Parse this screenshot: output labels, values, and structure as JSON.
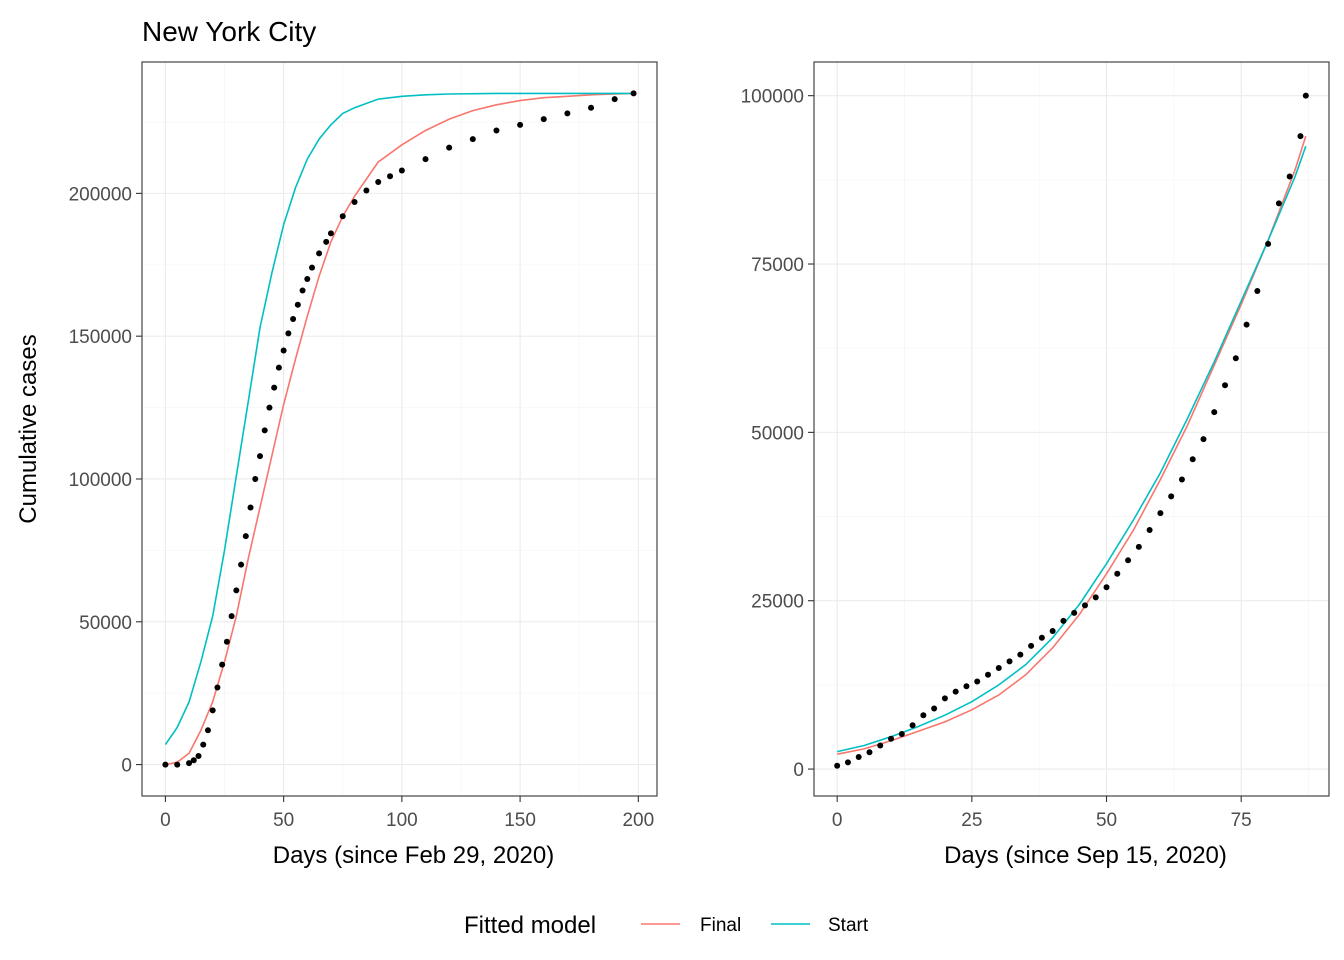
{
  "title": "New York City",
  "legend": {
    "title": "Fitted model",
    "placement": "bottom",
    "entries": [
      {
        "label": "Final",
        "color": "#F8766D"
      },
      {
        "label": "Start",
        "color": "#00BFC4"
      }
    ]
  },
  "chart_data": [
    {
      "type": "line",
      "xlabel": "Days (since Feb 29, 2020)",
      "ylabel": "Cumulative cases",
      "xlim": [
        -9.9,
        207.9
      ],
      "ylim": [
        -11000,
        246000
      ],
      "xticks": [
        0,
        50,
        100,
        150,
        200
      ],
      "yticks": [
        0,
        50000,
        100000,
        150000,
        200000
      ],
      "xtick_labels": [
        "0",
        "50",
        "100",
        "150",
        "200"
      ],
      "ytick_labels": [
        "0",
        "50000",
        "100000",
        "150000",
        "200000"
      ],
      "grid": true,
      "points": {
        "name": "observed",
        "x": [
          0,
          5,
          10,
          12,
          14,
          16,
          18,
          20,
          22,
          24,
          26,
          28,
          30,
          32,
          34,
          36,
          38,
          40,
          42,
          44,
          46,
          48,
          50,
          52,
          54,
          56,
          58,
          60,
          62,
          65,
          68,
          70,
          75,
          80,
          85,
          90,
          95,
          100,
          110,
          120,
          130,
          140,
          150,
          160,
          170,
          180,
          190,
          198
        ],
        "y": [
          0,
          0,
          500,
          1500,
          3000,
          7000,
          12000,
          19000,
          27000,
          35000,
          43000,
          52000,
          61000,
          70000,
          80000,
          90000,
          100000,
          108000,
          117000,
          125000,
          132000,
          139000,
          145000,
          151000,
          156000,
          161000,
          166000,
          170000,
          174000,
          179000,
          183000,
          186000,
          192000,
          197000,
          201000,
          204000,
          206000,
          208000,
          212000,
          216000,
          219000,
          222000,
          224000,
          226000,
          228000,
          230000,
          233000,
          235000
        ]
      },
      "series": [
        {
          "name": "Final",
          "color": "#F8766D",
          "x": [
            0,
            5,
            10,
            15,
            20,
            25,
            30,
            35,
            40,
            45,
            50,
            55,
            60,
            65,
            70,
            75,
            80,
            90,
            100,
            110,
            120,
            130,
            140,
            150,
            160,
            170,
            180,
            190,
            198
          ],
          "y": [
            0,
            800,
            4000,
            12000,
            22000,
            36000,
            52000,
            72000,
            90000,
            108000,
            126000,
            142000,
            157000,
            171000,
            183000,
            192000,
            199000,
            211000,
            217000,
            222000,
            226000,
            229000,
            231000,
            232500,
            233500,
            234000,
            234500,
            234800,
            235000
          ]
        },
        {
          "name": "Start",
          "color": "#00BFC4",
          "x": [
            0,
            5,
            10,
            15,
            20,
            25,
            30,
            35,
            40,
            45,
            50,
            55,
            60,
            65,
            70,
            75,
            80,
            90,
            100,
            110,
            120,
            140,
            160,
            180,
            198
          ],
          "y": [
            7000,
            13000,
            22000,
            36000,
            52000,
            75000,
            101000,
            127000,
            153000,
            172000,
            189000,
            202000,
            212000,
            219000,
            224000,
            228000,
            230000,
            233000,
            234000,
            234500,
            234800,
            235000,
            235000,
            235000,
            235000
          ]
        }
      ]
    },
    {
      "type": "line",
      "xlabel": "Days (since Sep 15, 2020)",
      "ylabel": "",
      "xlim": [
        -4.3,
        91.3
      ],
      "ylim": [
        -4000,
        105000
      ],
      "xticks": [
        0,
        25,
        50,
        75
      ],
      "yticks": [
        0,
        25000,
        50000,
        75000,
        100000
      ],
      "xtick_labels": [
        "0",
        "25",
        "50",
        "75"
      ],
      "ytick_labels": [
        "0",
        "25000",
        "50000",
        "75000",
        "100000"
      ],
      "grid": true,
      "points": {
        "name": "observed",
        "x": [
          0,
          2,
          4,
          6,
          8,
          10,
          12,
          14,
          16,
          18,
          20,
          22,
          24,
          26,
          28,
          30,
          32,
          34,
          36,
          38,
          40,
          42,
          44,
          46,
          48,
          50,
          52,
          54,
          56,
          58,
          60,
          62,
          64,
          66,
          68,
          70,
          72,
          74,
          76,
          78,
          80,
          82,
          84,
          86,
          87
        ],
        "y": [
          500,
          1000,
          1800,
          2500,
          3500,
          4500,
          5200,
          6500,
          8000,
          9000,
          10500,
          11500,
          12300,
          13000,
          14000,
          15000,
          16000,
          17000,
          18300,
          19500,
          20500,
          22000,
          23200,
          24300,
          25500,
          27000,
          29000,
          31000,
          33000,
          35500,
          38000,
          40500,
          43000,
          46000,
          49000,
          53000,
          57000,
          61000,
          66000,
          71000,
          78000,
          84000,
          88000,
          94000,
          100000
        ]
      },
      "series": [
        {
          "name": "Final",
          "color": "#F8766D",
          "x": [
            0,
            5,
            10,
            15,
            20,
            25,
            30,
            35,
            40,
            45,
            50,
            55,
            60,
            65,
            70,
            75,
            80,
            85,
            87
          ],
          "y": [
            2200,
            3000,
            4200,
            5600,
            7000,
            8800,
            11000,
            14000,
            18000,
            23000,
            29000,
            35500,
            43000,
            51000,
            60000,
            69000,
            78500,
            89000,
            94000
          ]
        },
        {
          "name": "Start",
          "color": "#00BFC4",
          "x": [
            0,
            5,
            10,
            15,
            20,
            25,
            30,
            35,
            40,
            45,
            50,
            55,
            60,
            65,
            70,
            75,
            80,
            85,
            87
          ],
          "y": [
            2600,
            3500,
            4800,
            6300,
            8000,
            10000,
            12500,
            15500,
            19500,
            24500,
            30500,
            37000,
            44000,
            52000,
            60500,
            69500,
            78500,
            88000,
            92500
          ]
        }
      ]
    }
  ]
}
